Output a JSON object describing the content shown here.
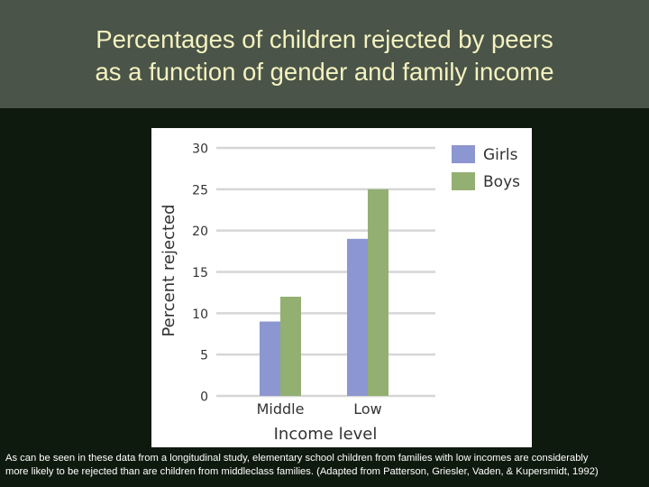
{
  "slide": {
    "title_line1": "Percentages of children rejected by peers",
    "title_line2": "as a function of gender and family income",
    "caption_line1": "As can be seen in these data from a longitudinal study, elementary school children from families with low incomes are considerably",
    "caption_line2": "more likely to be rejected than are children from middleclass families. (Adapted from Patterson, Griesler, Vaden, & Kupersmidt, 1992)"
  },
  "colors": {
    "title_band": "#4a5448",
    "background": "#0f1a0e",
    "title_text": "#f4f2c0",
    "girls": "#8c96d0",
    "boys": "#93b072"
  },
  "chart_data": {
    "type": "bar",
    "categories": [
      "Middle",
      "Low"
    ],
    "series": [
      {
        "name": "Girls",
        "values": [
          9,
          19
        ]
      },
      {
        "name": "Boys",
        "values": [
          12,
          25
        ]
      }
    ],
    "xlabel": "Income level",
    "ylabel": "Percent rejected",
    "ylim": [
      0,
      30
    ],
    "yticks": [
      0,
      5,
      10,
      15,
      20,
      25,
      30
    ],
    "grid": true,
    "legend": "top-right"
  }
}
